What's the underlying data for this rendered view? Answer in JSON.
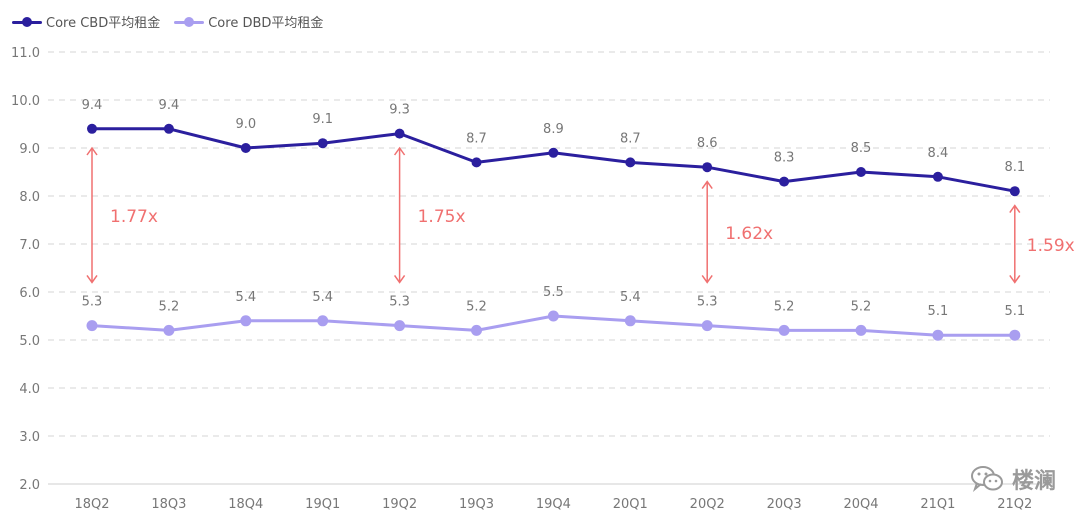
{
  "chart_data": {
    "type": "line",
    "categories": [
      "18Q2",
      "18Q3",
      "18Q4",
      "19Q1",
      "19Q2",
      "19Q3",
      "19Q4",
      "20Q1",
      "20Q2",
      "20Q3",
      "20Q4",
      "21Q1",
      "21Q2"
    ],
    "series": [
      {
        "name": "Core CBD平均租金",
        "color": "#2b1f9e",
        "values": [
          9.4,
          9.4,
          9.0,
          9.1,
          9.3,
          8.7,
          8.9,
          8.7,
          8.6,
          8.3,
          8.5,
          8.4,
          8.1
        ],
        "labels": [
          "9.4",
          "9.4",
          "9.0",
          "9.1",
          "9.3",
          "8.7",
          "8.9",
          "8.7",
          "8.6",
          "8.3",
          "8.5",
          "8.4",
          "8.1"
        ]
      },
      {
        "name": "Core DBD平均租金",
        "color": "#a99ef0",
        "values": [
          5.3,
          5.2,
          5.4,
          5.4,
          5.3,
          5.2,
          5.5,
          5.4,
          5.3,
          5.2,
          5.2,
          5.1,
          5.1
        ],
        "labels": [
          "5.3",
          "5.2",
          "5.4",
          "5.4",
          "5.3",
          "5.2",
          "5.5",
          "5.4",
          "5.3",
          "5.2",
          "5.2",
          "5.1",
          "5.1"
        ]
      }
    ],
    "ylim": [
      2.0,
      11.0
    ],
    "yticks": [
      "2.0",
      "3.0",
      "4.0",
      "5.0",
      "6.0",
      "7.0",
      "8.0",
      "9.0",
      "10.0",
      "11.0"
    ],
    "grid": true,
    "legend": "top-left",
    "annotations": [
      {
        "category": "18Q2",
        "text": "1.77x",
        "from": 9.0,
        "to": 6.2
      },
      {
        "category": "19Q2",
        "text": "1.75x",
        "from": 9.0,
        "to": 6.2
      },
      {
        "category": "20Q2",
        "text": "1.62x",
        "from": 8.3,
        "to": 6.2
      },
      {
        "category": "21Q2",
        "text": "1.59x",
        "from": 7.8,
        "to": 6.2
      }
    ],
    "annotation_color": "#f07070"
  },
  "watermark": {
    "text": "楼澜",
    "icon": "wechat-icon"
  }
}
